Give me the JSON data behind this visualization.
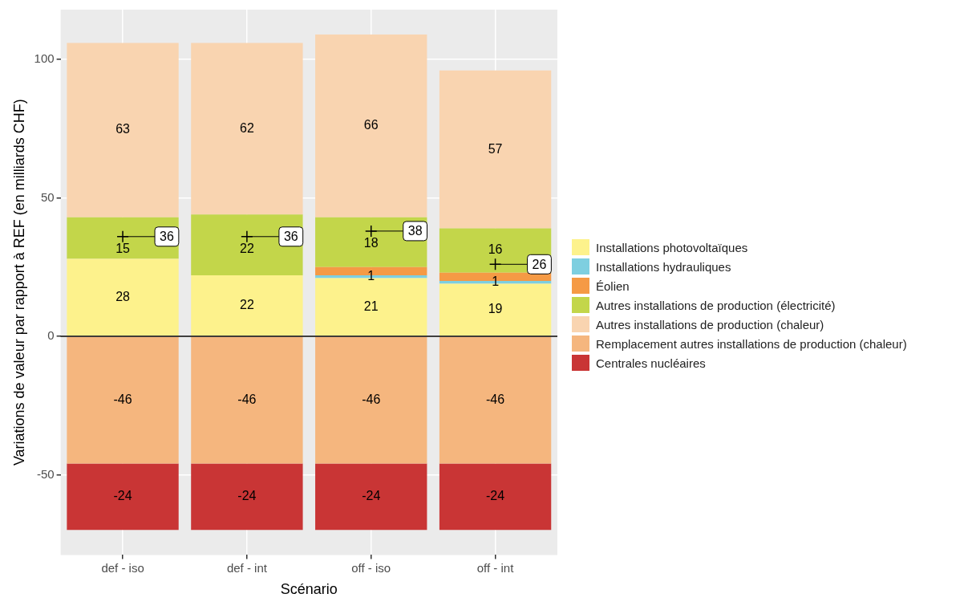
{
  "chart_data": {
    "type": "bar",
    "stacked": true,
    "xlabel": "Scénario",
    "ylabel": "Variations de valeur par rapport à REF (en milliards CHF)",
    "categories": [
      "def - iso",
      "def - int",
      "off - iso",
      "off - int"
    ],
    "series": [
      {
        "name": "Installations photovoltaïques",
        "color": "#fdf28c",
        "values": [
          28,
          22,
          21,
          19
        ],
        "value_labels": [
          "28",
          "22",
          "21",
          "19"
        ]
      },
      {
        "name": "Installations hydrauliques",
        "color": "#7ecfe0",
        "values": [
          0,
          0,
          1,
          1
        ],
        "value_labels": [
          null,
          null,
          "1",
          "1"
        ]
      },
      {
        "name": "Éolien",
        "color": "#f59a45",
        "values": [
          0,
          0,
          3,
          3
        ],
        "value_labels": [
          null,
          null,
          null,
          null
        ]
      },
      {
        "name": "Autres installations de production (électricité)",
        "color": "#c3d64a",
        "values": [
          15,
          22,
          18,
          16
        ],
        "value_labels": [
          "15",
          "22",
          "18",
          "16"
        ]
      },
      {
        "name": "Autres installations de production (chaleur)",
        "color": "#f9d4b0",
        "values": [
          63,
          62,
          66,
          57
        ],
        "value_labels": [
          "63",
          "62",
          "66",
          "57"
        ]
      },
      {
        "name": "Remplacement autres installations de production (chaleur)",
        "color": "#f5b67e",
        "values": [
          -46,
          -46,
          -46,
          -46
        ],
        "value_labels": [
          "-46",
          "-46",
          "-46",
          "-46"
        ]
      },
      {
        "name": "Centrales nucléaires",
        "color": "#c93535",
        "values": [
          -24,
          -24,
          -24,
          -24
        ],
        "value_labels": [
          "-24",
          "-24",
          "-24",
          "-24"
        ]
      },
      {
        "type": "scatter",
        "marker": "cross",
        "color": "#000000",
        "values": [
          36,
          36,
          38,
          26
        ],
        "value_labels": [
          "36",
          "36",
          "38",
          "26"
        ]
      }
    ],
    "ylim": [
      -79,
      118
    ],
    "yticks": [
      -50,
      0,
      50,
      100
    ],
    "grid": true,
    "legend": "right",
    "ref_lines": [
      {
        "axis": "y",
        "value": 0,
        "color": "#000000"
      }
    ]
  }
}
